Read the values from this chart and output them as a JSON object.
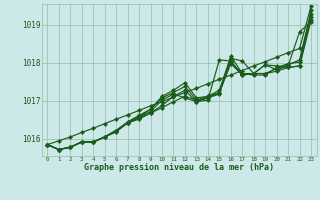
{
  "title": "Graphe pression niveau de la mer (hPa)",
  "bg_color": "#cce8e8",
  "grid_color": "#99bbaa",
  "line_color": "#1a5c1a",
  "xlim": [
    -0.5,
    23.5
  ],
  "ylim": [
    1015.55,
    1019.55
  ],
  "yticks": [
    1016,
    1017,
    1018,
    1019
  ],
  "xticks": [
    0,
    1,
    2,
    3,
    4,
    5,
    6,
    7,
    8,
    9,
    10,
    11,
    12,
    13,
    14,
    15,
    16,
    17,
    18,
    19,
    20,
    21,
    22,
    23
  ],
  "series": [
    [
      1015.85,
      1015.72,
      1015.78,
      1015.92,
      1015.92,
      1016.05,
      1016.22,
      1016.42,
      1016.55,
      1016.68,
      1016.82,
      1016.98,
      1017.12,
      1017.02,
      1017.08,
      1017.18,
      1018.12,
      1018.05,
      1017.72,
      1017.72,
      1017.85,
      1017.95,
      1018.08,
      1019.38
    ],
    [
      1015.85,
      1015.72,
      1015.78,
      1015.92,
      1015.92,
      1016.05,
      1016.22,
      1016.42,
      1016.58,
      1016.72,
      1017.02,
      1017.18,
      1017.08,
      1016.98,
      1017.02,
      1018.08,
      1018.05,
      1017.68,
      1017.72,
      1017.95,
      1017.82,
      1017.92,
      1018.82,
      1019.08
    ],
    [
      1015.85,
      1015.72,
      1015.78,
      1015.92,
      1015.92,
      1016.05,
      1016.22,
      1016.42,
      1016.58,
      1016.78,
      1017.08,
      1017.22,
      1017.38,
      1017.02,
      1017.12,
      1017.28,
      1018.18,
      1017.72,
      1017.72,
      1017.95,
      1017.92,
      1017.88,
      1017.92,
      1019.22
    ],
    [
      1015.85,
      1015.72,
      1015.78,
      1015.92,
      1015.92,
      1016.05,
      1016.18,
      1016.42,
      1016.52,
      1016.68,
      1016.88,
      1017.12,
      1017.28,
      1016.98,
      1017.08,
      1017.22,
      1017.98,
      1017.68,
      1017.72,
      1017.72,
      1017.78,
      1017.88,
      1017.92,
      1019.12
    ],
    [
      1015.85,
      1015.72,
      1015.78,
      1015.92,
      1015.92,
      1016.05,
      1016.22,
      1016.45,
      1016.62,
      1016.78,
      1017.12,
      1017.28,
      1017.48,
      1017.08,
      1017.12,
      1017.22,
      1018.02,
      1017.72,
      1017.68,
      1017.68,
      1017.88,
      1017.98,
      1018.02,
      1019.28
    ],
    [
      1015.85,
      1015.95,
      1016.05,
      1016.17,
      1016.28,
      1016.4,
      1016.52,
      1016.63,
      1016.75,
      1016.87,
      1016.98,
      1017.1,
      1017.22,
      1017.33,
      1017.45,
      1017.57,
      1017.68,
      1017.8,
      1017.92,
      1018.03,
      1018.15,
      1018.27,
      1018.38,
      1019.5
    ]
  ]
}
